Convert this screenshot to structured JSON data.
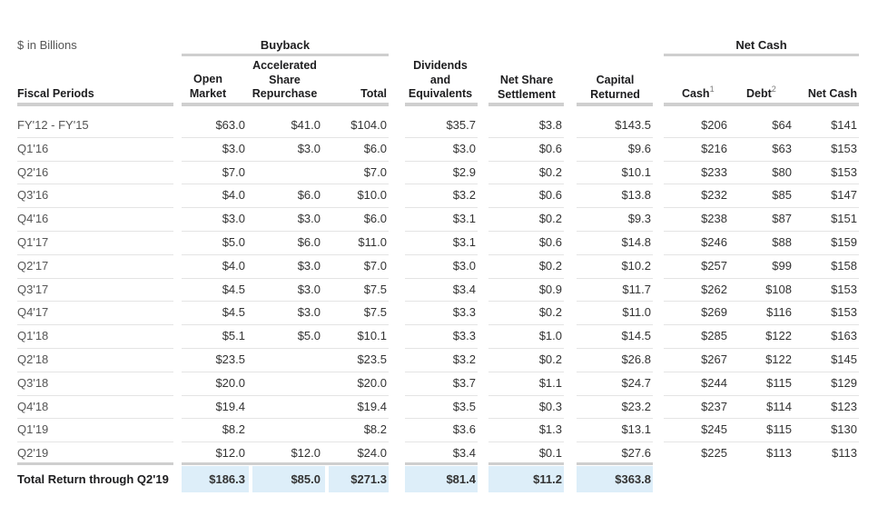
{
  "units_label": "$ in Billions",
  "groups": {
    "buyback": "Buyback",
    "net_cash": "Net Cash"
  },
  "headers": {
    "fiscal_periods": "Fiscal Periods",
    "open_market": [
      "Open",
      "Market"
    ],
    "asr": [
      "Accelerated",
      "Share",
      "Repurchase"
    ],
    "total": "Total",
    "dividends": [
      "Dividends",
      "and",
      "Equivalents"
    ],
    "net_share": [
      "Net Share",
      "Settlement"
    ],
    "capital": [
      "Capital",
      "Returned"
    ],
    "cash": "Cash",
    "cash_note": "1",
    "debt": "Debt",
    "debt_note": "2",
    "net_cash": "Net Cash"
  },
  "rows": [
    {
      "period": "FY'12 - FY'15",
      "open": "$63.0",
      "asr": "$41.0",
      "total": "$104.0",
      "div": "$35.7",
      "nss": "$3.8",
      "cap": "$143.5",
      "cash": "$206",
      "debt": "$64",
      "net": "$141"
    },
    {
      "period": "Q1'16",
      "open": "$3.0",
      "asr": "$3.0",
      "total": "$6.0",
      "div": "$3.0",
      "nss": "$0.6",
      "cap": "$9.6",
      "cash": "$216",
      "debt": "$63",
      "net": "$153"
    },
    {
      "period": "Q2'16",
      "open": "$7.0",
      "asr": "",
      "total": "$7.0",
      "div": "$2.9",
      "nss": "$0.2",
      "cap": "$10.1",
      "cash": "$233",
      "debt": "$80",
      "net": "$153"
    },
    {
      "period": "Q3'16",
      "open": "$4.0",
      "asr": "$6.0",
      "total": "$10.0",
      "div": "$3.2",
      "nss": "$0.6",
      "cap": "$13.8",
      "cash": "$232",
      "debt": "$85",
      "net": "$147"
    },
    {
      "period": "Q4'16",
      "open": "$3.0",
      "asr": "$3.0",
      "total": "$6.0",
      "div": "$3.1",
      "nss": "$0.2",
      "cap": "$9.3",
      "cash": "$238",
      "debt": "$87",
      "net": "$151"
    },
    {
      "period": "Q1'17",
      "open": "$5.0",
      "asr": "$6.0",
      "total": "$11.0",
      "div": "$3.1",
      "nss": "$0.6",
      "cap": "$14.8",
      "cash": "$246",
      "debt": "$88",
      "net": "$159"
    },
    {
      "period": "Q2'17",
      "open": "$4.0",
      "asr": "$3.0",
      "total": "$7.0",
      "div": "$3.0",
      "nss": "$0.2",
      "cap": "$10.2",
      "cash": "$257",
      "debt": "$99",
      "net": "$158"
    },
    {
      "period": "Q3'17",
      "open": "$4.5",
      "asr": "$3.0",
      "total": "$7.5",
      "div": "$3.4",
      "nss": "$0.9",
      "cap": "$11.7",
      "cash": "$262",
      "debt": "$108",
      "net": "$153"
    },
    {
      "period": "Q4'17",
      "open": "$4.5",
      "asr": "$3.0",
      "total": "$7.5",
      "div": "$3.3",
      "nss": "$0.2",
      "cap": "$11.0",
      "cash": "$269",
      "debt": "$116",
      "net": "$153"
    },
    {
      "period": "Q1'18",
      "open": "$5.1",
      "asr": "$5.0",
      "total": "$10.1",
      "div": "$3.3",
      "nss": "$1.0",
      "cap": "$14.5",
      "cash": "$285",
      "debt": "$122",
      "net": "$163"
    },
    {
      "period": "Q2'18",
      "open": "$23.5",
      "asr": "",
      "total": "$23.5",
      "div": "$3.2",
      "nss": "$0.2",
      "cap": "$26.8",
      "cash": "$267",
      "debt": "$122",
      "net": "$145"
    },
    {
      "period": "Q3'18",
      "open": "$20.0",
      "asr": "",
      "total": "$20.0",
      "div": "$3.7",
      "nss": "$1.1",
      "cap": "$24.7",
      "cash": "$244",
      "debt": "$115",
      "net": "$129"
    },
    {
      "period": "Q4'18",
      "open": "$19.4",
      "asr": "",
      "total": "$19.4",
      "div": "$3.5",
      "nss": "$0.3",
      "cap": "$23.2",
      "cash": "$237",
      "debt": "$114",
      "net": "$123"
    },
    {
      "period": "Q1'19",
      "open": "$8.2",
      "asr": "",
      "total": "$8.2",
      "div": "$3.6",
      "nss": "$1.3",
      "cap": "$13.1",
      "cash": "$245",
      "debt": "$115",
      "net": "$130"
    },
    {
      "period": "Q2'19",
      "open": "$12.0",
      "asr": "$12.0",
      "total": "$24.0",
      "div": "$3.4",
      "nss": "$0.1",
      "cap": "$27.6",
      "cash": "$225",
      "debt": "$113",
      "net": "$113"
    }
  ],
  "total_row": {
    "label": "Total Return through Q2'19",
    "open": "$186.3",
    "asr": "$85.0",
    "total": "$271.3",
    "div": "$81.4",
    "nss": "$11.2",
    "cap": "$363.8"
  },
  "colors": {
    "highlight": "#ddeef9",
    "rule": "#cfcfcf",
    "row_divider": "#e4e4e4"
  }
}
